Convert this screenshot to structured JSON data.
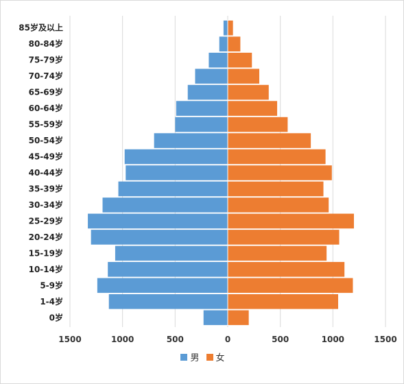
{
  "chart_data": {
    "type": "bar",
    "orientation": "horizontal",
    "title": "",
    "xlabel": "",
    "ylabel": "",
    "xlim": [
      -1500,
      1500
    ],
    "x_ticks": [
      "1500",
      "1000",
      "500",
      "0",
      "500",
      "1000",
      "1500"
    ],
    "categories": [
      "0岁",
      "1-4岁",
      "5-9岁",
      "10-14岁",
      "15-19岁",
      "20-24岁",
      "25-29岁",
      "30-34岁",
      "35-39岁",
      "40-44岁",
      "45-49岁",
      "50-54岁",
      "55-59岁",
      "60-64岁",
      "65-69岁",
      "70-74岁",
      "75-79岁",
      "80-84岁",
      "85岁及以上"
    ],
    "series": [
      {
        "name": "男",
        "color": "#5b9bd5",
        "values": [
          -230,
          -1130,
          -1240,
          -1140,
          -1070,
          -1300,
          -1330,
          -1190,
          -1040,
          -970,
          -980,
          -700,
          -500,
          -490,
          -380,
          -310,
          -180,
          -80,
          -40
        ]
      },
      {
        "name": "女",
        "color": "#ed7d31",
        "values": [
          200,
          1050,
          1190,
          1110,
          940,
          1060,
          1200,
          960,
          910,
          990,
          930,
          790,
          570,
          470,
          390,
          300,
          230,
          120,
          50
        ]
      }
    ],
    "grid": true,
    "legend_position": "bottom"
  }
}
